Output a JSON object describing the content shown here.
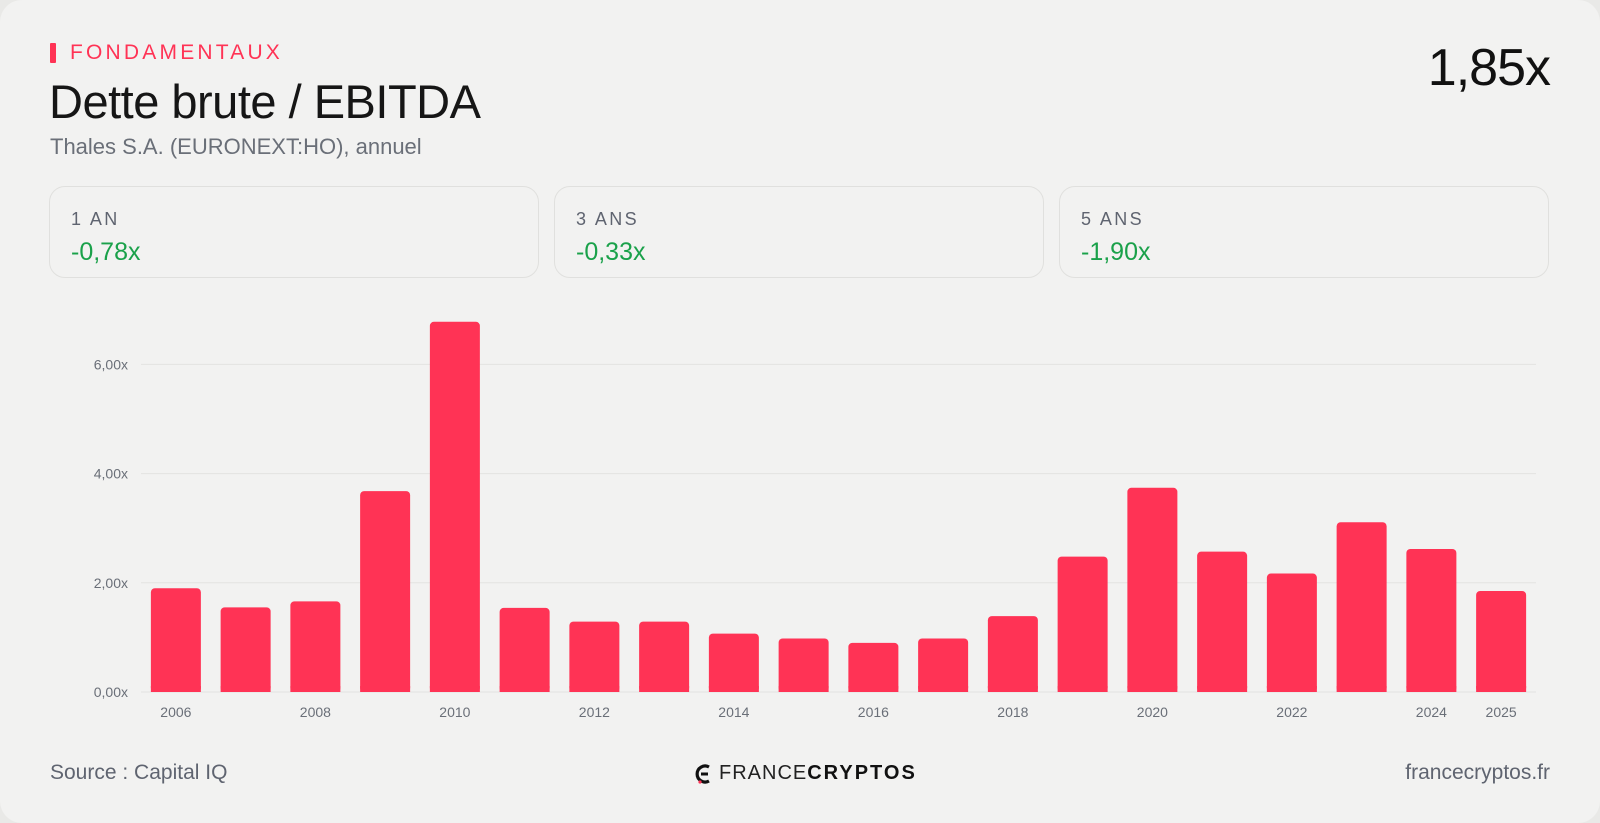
{
  "header": {
    "eyebrow": "FONDAMENTAUX",
    "title": "Dette brute / EBITDA",
    "subtitle": "Thales S.A. (EURONEXT:HO), annuel",
    "current_value": "1,85x"
  },
  "stats": [
    {
      "label": "1 AN",
      "value": "-0,78x"
    },
    {
      "label": "3 ANS",
      "value": "-0,33x"
    },
    {
      "label": "5 ANS",
      "value": "-1,90x"
    }
  ],
  "footer": {
    "source": "Source : Capital IQ",
    "brand_light": "FRANCE",
    "brand_bold": "CRYPTOS",
    "site": "francecryptos.fr"
  },
  "colors": {
    "accent": "#ff3355",
    "positive_change": "#1aa14a",
    "gridline": "#e3e3e1",
    "axis_text": "#6a6f78"
  },
  "chart_data": {
    "type": "bar",
    "title": "",
    "xlabel": "",
    "ylabel": "",
    "categories": [
      "2006",
      "2007",
      "2008",
      "2009",
      "2010",
      "2011",
      "2012",
      "2013",
      "2014",
      "2015",
      "2016",
      "2017",
      "2018",
      "2019",
      "2020",
      "2021",
      "2022",
      "2023",
      "2024",
      "2025"
    ],
    "values": [
      1.9,
      1.55,
      1.66,
      3.68,
      6.78,
      1.54,
      1.29,
      1.29,
      1.07,
      0.98,
      0.9,
      0.98,
      1.39,
      2.48,
      3.74,
      2.57,
      2.17,
      3.11,
      2.62,
      1.85
    ],
    "x_tick_labels": [
      "2006",
      "2008",
      "2010",
      "2012",
      "2014",
      "2016",
      "2018",
      "2020",
      "2022",
      "2024",
      "2025"
    ],
    "y_tick_values": [
      0,
      2,
      4,
      6
    ],
    "y_tick_labels": [
      "0,00x",
      "2,00x",
      "4,00x",
      "6,00x"
    ],
    "ylim": [
      0,
      7
    ],
    "grid": true,
    "legend": "none"
  }
}
